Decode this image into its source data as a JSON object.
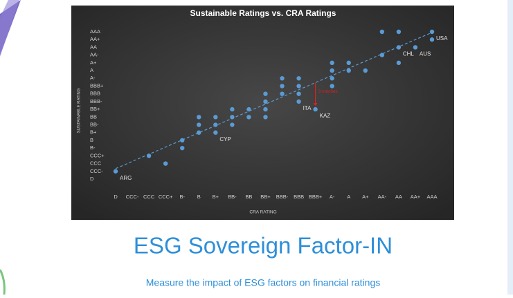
{
  "chart_data": {
    "type": "scatter",
    "title": "Sustainable Ratings vs. CRA Ratings",
    "x_label": "CRA RATING",
    "y_label": "SUSTAINABLE RATING",
    "color": "#5b9bd5",
    "trendline": true,
    "x": [
      0,
      2,
      3,
      4,
      4,
      5,
      5,
      5,
      6,
      6,
      6,
      7,
      7,
      7,
      8,
      8,
      9,
      9,
      9,
      9,
      10,
      10,
      10,
      11,
      11,
      11,
      11,
      12,
      13,
      13,
      13,
      13,
      14,
      14,
      15,
      16,
      16,
      17,
      17,
      17,
      18,
      19,
      19
    ],
    "y": [
      1,
      3,
      2,
      5,
      4,
      8,
      7,
      6,
      8,
      7,
      6,
      9,
      8,
      7,
      9,
      8,
      11,
      10,
      9,
      8,
      13,
      12,
      11,
      13,
      12,
      11,
      10,
      9,
      15,
      14,
      13,
      12,
      15,
      14,
      14,
      19,
      16,
      19,
      17,
      15,
      17,
      19,
      18
    ],
    "point_labels": [
      "ARG",
      null,
      null,
      null,
      null,
      null,
      null,
      null,
      null,
      null,
      "CYP",
      null,
      null,
      null,
      null,
      null,
      null,
      null,
      null,
      null,
      null,
      null,
      null,
      null,
      null,
      null,
      "ITA",
      "KAZ",
      null,
      null,
      null,
      null,
      null,
      null,
      null,
      null,
      null,
      null,
      "CHL",
      null,
      "AUS",
      "USA",
      null
    ],
    "annotation": {
      "text": "3 notches",
      "point": "KAZ"
    },
    "xlim": [
      -0.5,
      19.5
    ],
    "ylim": [
      -0.5,
      19.5
    ],
    "xticks": [
      {
        "value": 0,
        "label": "D"
      },
      {
        "value": 1,
        "label": "CCC-"
      },
      {
        "value": 2,
        "label": "CCC"
      },
      {
        "value": 3,
        "label": "CCC+"
      },
      {
        "value": 4,
        "label": "B-"
      },
      {
        "value": 5,
        "label": "B"
      },
      {
        "value": 6,
        "label": "B+"
      },
      {
        "value": 7,
        "label": "BB-"
      },
      {
        "value": 8,
        "label": "BB"
      },
      {
        "value": 9,
        "label": "BB+"
      },
      {
        "value": 10,
        "label": "BBB-"
      },
      {
        "value": 11,
        "label": "BBB"
      },
      {
        "value": 12,
        "label": "BBB+"
      },
      {
        "value": 13,
        "label": "A-"
      },
      {
        "value": 14,
        "label": "A"
      },
      {
        "value": 15,
        "label": "A+"
      },
      {
        "value": 16,
        "label": "AA-"
      },
      {
        "value": 17,
        "label": "AA"
      },
      {
        "value": 18,
        "label": "AA+"
      },
      {
        "value": 19,
        "label": "AAA"
      }
    ],
    "yticks": [
      {
        "value": 0,
        "label": "D"
      },
      {
        "value": 1,
        "label": "CCC-"
      },
      {
        "value": 2,
        "label": "CCC"
      },
      {
        "value": 3,
        "label": "CCC+"
      },
      {
        "value": 4,
        "label": "B-"
      },
      {
        "value": 5,
        "label": "B"
      },
      {
        "value": 6,
        "label": "B+"
      },
      {
        "value": 7,
        "label": "BB-"
      },
      {
        "value": 8,
        "label": "BB"
      },
      {
        "value": 9,
        "label": "BB+"
      },
      {
        "value": 10,
        "label": "BBB-"
      },
      {
        "value": 11,
        "label": "BBB"
      },
      {
        "value": 12,
        "label": "BBB+"
      },
      {
        "value": 13,
        "label": "A-"
      },
      {
        "value": 14,
        "label": "A"
      },
      {
        "value": 15,
        "label": "A+"
      },
      {
        "value": 16,
        "label": "AA-"
      },
      {
        "value": 17,
        "label": "AA"
      },
      {
        "value": 18,
        "label": "AA+"
      },
      {
        "value": 19,
        "label": "AAA"
      }
    ]
  },
  "slide": {
    "title": "ESG Sovereign Factor-IN",
    "subtitle": "Measure the impact of ESG factors on financial ratings"
  }
}
